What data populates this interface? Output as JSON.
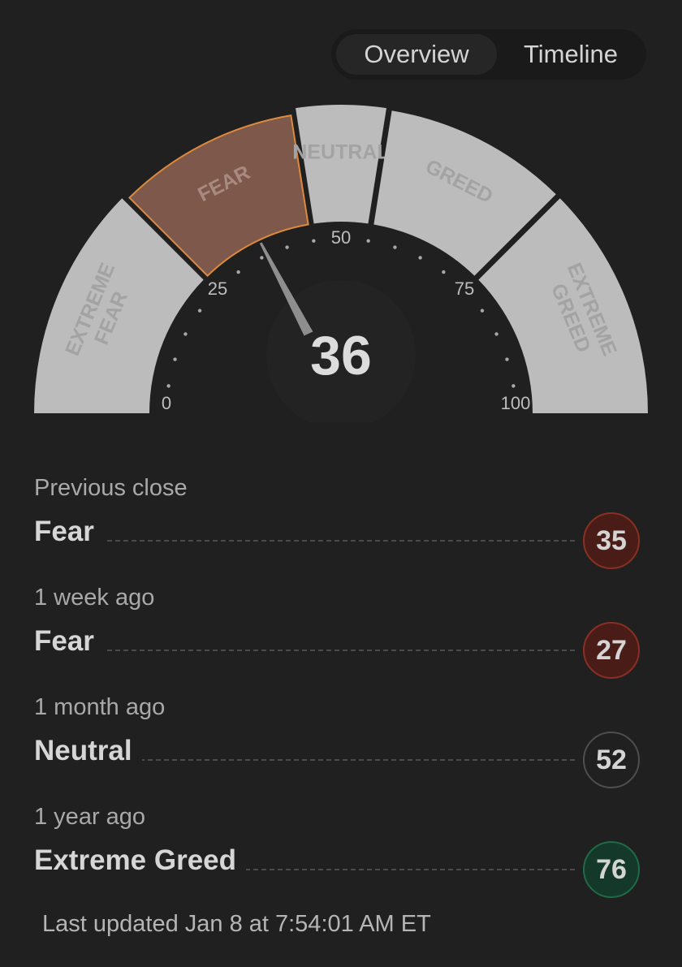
{
  "tabs": {
    "overview": "Overview",
    "timeline": "Timeline"
  },
  "gauge": {
    "value": 36,
    "value_label": "36",
    "min": 0,
    "max": 100,
    "segments": [
      {
        "name": "extreme-fear",
        "from": 0,
        "to": 25,
        "lines": [
          "EXTREME",
          "FEAR"
        ],
        "active": false
      },
      {
        "name": "fear",
        "from": 25,
        "to": 45,
        "lines": [
          "FEAR"
        ],
        "active": true
      },
      {
        "name": "neutral",
        "from": 45,
        "to": 55,
        "lines": [
          "NEUTRAL"
        ],
        "active": false
      },
      {
        "name": "greed",
        "from": 55,
        "to": 75,
        "lines": [
          "GREED"
        ],
        "active": false
      },
      {
        "name": "extreme-greed",
        "from": 75,
        "to": 100,
        "lines": [
          "EXTREME",
          "GREED"
        ],
        "active": false
      }
    ],
    "ticks": [
      {
        "value": 0,
        "label": "0"
      },
      {
        "value": 25,
        "label": "25"
      },
      {
        "value": 50,
        "label": "50"
      },
      {
        "value": 75,
        "label": "75"
      },
      {
        "value": 100,
        "label": "100"
      }
    ],
    "colors": {
      "segment": "#bcbcbc",
      "segment_text": "#a3a3a3",
      "active_fill": "#7d584b",
      "active_stroke": "#dd8a3c",
      "active_text": "#a88a80",
      "needle": "#8e8e8e",
      "value_text": "#dcdcdc",
      "tick_dot": "#a8a8a8",
      "tick_label": "#bdbdbd"
    }
  },
  "history": [
    {
      "label": "Previous close",
      "rating": "Fear",
      "value": "35",
      "bg": "#4a1c17",
      "border": "#8a3022"
    },
    {
      "label": "1 week ago",
      "rating": "Fear",
      "value": "27",
      "bg": "#4a1c17",
      "border": "#8a3022"
    },
    {
      "label": "1 month ago",
      "rating": "Neutral",
      "value": "52",
      "bg": "#202020",
      "border": "#4e4e4e"
    },
    {
      "label": "1 year ago",
      "rating": "Extreme Greed",
      "value": "76",
      "bg": "#14392a",
      "border": "#1f6b45"
    }
  ],
  "last_updated": "Last updated Jan 8 at 7:54:01 AM ET"
}
